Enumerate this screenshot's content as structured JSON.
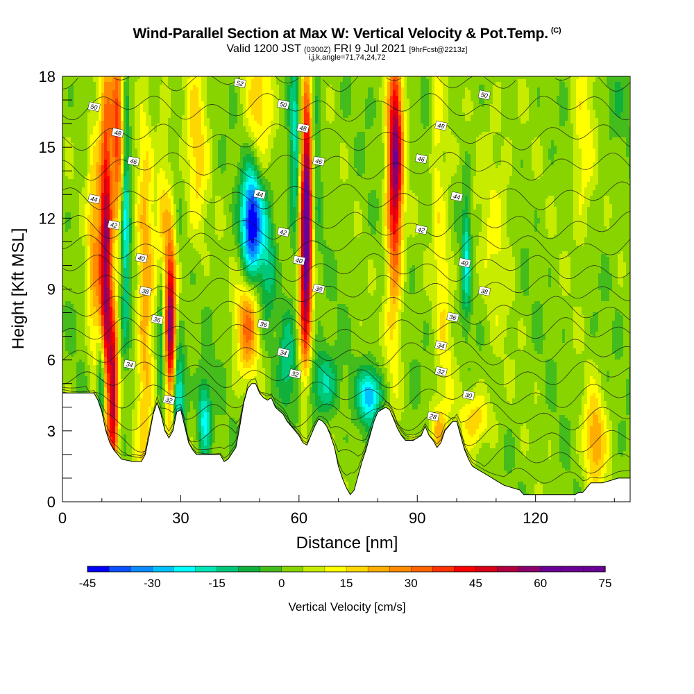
{
  "header": {
    "title": "Wind-Parallel Section at Max W: Vertical Velocity & Pot.Temp.",
    "copyright": "(C)",
    "valid_prefix": "Valid 1200 JST",
    "valid_z": "(0300Z)",
    "valid_date": "FRI 9 Jul 2021",
    "forecast": "[9hrFcst@2213z]",
    "indices": "i,j,k,angle=71,74,24,72"
  },
  "chart_data": {
    "type": "heatmap",
    "xlabel": "Distance [nm]",
    "ylabel": "Height [Kft MSL]",
    "xlim": [
      0,
      144
    ],
    "ylim": [
      0,
      18
    ],
    "x_ticks": [
      "0",
      "30",
      "60",
      "90",
      "120"
    ],
    "y_ticks": [
      "0",
      "3",
      "6",
      "9",
      "12",
      "15",
      "18"
    ],
    "colorbar": {
      "label": "Vertical Velocity [cm/s]",
      "range": [
        -45,
        75
      ],
      "step": 5,
      "tick_labels": [
        "-45",
        "-30",
        "-15",
        "0",
        "15",
        "30",
        "45",
        "60",
        "75"
      ],
      "colors": [
        "#0000ff",
        "#0a50ff",
        "#0a8aff",
        "#00c0ff",
        "#00ffff",
        "#00e6b4",
        "#00c878",
        "#10b03c",
        "#44bc1c",
        "#88d400",
        "#c8ec00",
        "#ffff00",
        "#ffd700",
        "#ffae00",
        "#ff8a00",
        "#ff6400",
        "#ff3200",
        "#ff0000",
        "#d80014",
        "#b00040",
        "#8c006e",
        "#6a0096"
      ]
    },
    "theta_contours": {
      "unit": "theta labels",
      "levels": [
        28,
        30,
        32,
        34,
        36,
        38,
        40,
        42,
        44,
        46,
        48,
        50,
        52
      ],
      "labels_shown": [
        "52",
        "50",
        "50",
        "50",
        "48",
        "48",
        "48",
        "46",
        "46",
        "46",
        "44",
        "44",
        "44",
        "42",
        "42",
        "42",
        "40",
        "40",
        "40",
        "38",
        "38",
        "38",
        "36",
        "36",
        "36",
        "34",
        "34",
        "34",
        "32",
        "32",
        "32",
        "30",
        "28"
      ]
    },
    "terrain_heights_kft": [
      [
        0,
        4.6
      ],
      [
        8,
        4.6
      ],
      [
        9,
        4.3
      ],
      [
        10,
        3.8
      ],
      [
        11,
        3.0
      ],
      [
        12,
        2.5
      ],
      [
        13,
        2.2
      ],
      [
        14,
        2.0
      ],
      [
        15,
        1.8
      ],
      [
        18,
        1.7
      ],
      [
        20,
        1.7
      ],
      [
        21,
        2.0
      ],
      [
        22,
        2.8
      ],
      [
        23,
        3.7
      ],
      [
        24,
        4.2
      ],
      [
        25,
        3.7
      ],
      [
        26,
        3.0
      ],
      [
        27,
        2.7
      ],
      [
        28,
        3.0
      ],
      [
        29,
        3.8
      ],
      [
        30,
        3.9
      ],
      [
        31,
        3.2
      ],
      [
        32,
        2.5
      ],
      [
        33,
        2.2
      ],
      [
        34,
        2.0
      ],
      [
        40,
        2.0
      ],
      [
        41,
        1.7
      ],
      [
        42,
        1.8
      ],
      [
        44,
        2.3
      ],
      [
        45,
        3.2
      ],
      [
        46,
        4.2
      ],
      [
        47,
        4.8
      ],
      [
        48,
        5.0
      ],
      [
        49,
        5.0
      ],
      [
        50,
        4.6
      ],
      [
        51,
        4.4
      ],
      [
        52,
        4.3
      ],
      [
        53,
        4.4
      ],
      [
        54,
        4.0
      ],
      [
        56,
        3.7
      ],
      [
        57,
        3.4
      ],
      [
        58,
        3.2
      ],
      [
        59,
        3.0
      ],
      [
        60,
        2.8
      ],
      [
        61,
        2.5
      ],
      [
        62,
        2.4
      ],
      [
        63,
        2.8
      ],
      [
        64,
        3.2
      ],
      [
        65,
        3.5
      ],
      [
        66,
        3.4
      ],
      [
        67,
        3.2
      ],
      [
        68,
        2.8
      ],
      [
        69,
        2.3
      ],
      [
        70,
        1.5
      ],
      [
        71,
        1.0
      ],
      [
        72,
        0.6
      ],
      [
        73,
        0.3
      ],
      [
        74,
        0.5
      ],
      [
        75,
        1.1
      ],
      [
        76,
        1.7
      ],
      [
        77,
        2.2
      ],
      [
        78,
        2.8
      ],
      [
        79,
        3.4
      ],
      [
        80,
        3.8
      ],
      [
        82,
        4.0
      ],
      [
        83,
        3.9
      ],
      [
        84,
        3.5
      ],
      [
        85,
        3.1
      ],
      [
        86,
        2.8
      ],
      [
        87,
        2.6
      ],
      [
        89,
        2.6
      ],
      [
        90,
        2.7
      ],
      [
        91,
        2.8
      ],
      [
        92,
        3.2
      ],
      [
        93,
        2.8
      ],
      [
        94,
        2.6
      ],
      [
        95,
        2.3
      ],
      [
        96,
        2.5
      ],
      [
        97,
        3.0
      ],
      [
        99,
        3.4
      ],
      [
        100,
        3.4
      ],
      [
        101,
        2.8
      ],
      [
        102,
        2.2
      ],
      [
        103,
        1.8
      ],
      [
        104,
        1.5
      ],
      [
        106,
        1.3
      ],
      [
        108,
        1.1
      ],
      [
        110,
        0.9
      ],
      [
        112,
        0.7
      ],
      [
        114,
        0.6
      ],
      [
        116,
        0.5
      ],
      [
        117,
        0.3
      ],
      [
        130,
        0.3
      ],
      [
        131,
        0.4
      ],
      [
        132,
        0.4
      ],
      [
        133,
        0.6
      ],
      [
        134,
        0.8
      ],
      [
        137,
        0.8
      ],
      [
        139,
        0.9
      ],
      [
        141,
        1.0
      ],
      [
        144,
        1.0
      ]
    ],
    "w_features": [
      {
        "x": 11,
        "y": 10,
        "sx": 1.1,
        "sy": 5.5,
        "w": 55
      },
      {
        "x": 13,
        "y": 4.5,
        "sx": 0.8,
        "sy": 2.5,
        "w": 45
      },
      {
        "x": 14,
        "y": 15.5,
        "sx": 1.2,
        "sy": 3.0,
        "w": 35
      },
      {
        "x": 8,
        "y": 11.0,
        "sx": 1.2,
        "sy": 4.0,
        "w": 20
      },
      {
        "x": 16,
        "y": 12.5,
        "sx": 0.8,
        "sy": 4.0,
        "w": -25
      },
      {
        "x": 10,
        "y": 5.0,
        "sx": 0.8,
        "sy": 1.5,
        "w": -35
      },
      {
        "x": 21,
        "y": 8.0,
        "sx": 1.5,
        "sy": 6.0,
        "w": 22
      },
      {
        "x": 27.5,
        "y": 7.0,
        "sx": 0.9,
        "sy": 3.0,
        "w": 55
      },
      {
        "x": 25,
        "y": 7.5,
        "sx": 0.7,
        "sy": 2.0,
        "w": -22
      },
      {
        "x": 25.5,
        "y": 11.0,
        "sx": 1.2,
        "sy": 4.0,
        "w": 15
      },
      {
        "x": 29,
        "y": 4.5,
        "sx": 1.5,
        "sy": 1.5,
        "w": -30
      },
      {
        "x": 36,
        "y": 3.5,
        "sx": 1.2,
        "sy": 1.2,
        "w": -25
      },
      {
        "x": 34,
        "y": 15.0,
        "sx": 2.0,
        "sy": 3.0,
        "w": 15
      },
      {
        "x": 48,
        "y": 11.8,
        "sx": 1.8,
        "sy": 1.6,
        "w": -48
      },
      {
        "x": 52,
        "y": 10.5,
        "sx": 1.5,
        "sy": 2.0,
        "w": -15
      },
      {
        "x": 47,
        "y": 7.5,
        "sx": 2.0,
        "sy": 1.5,
        "w": 28
      },
      {
        "x": 50,
        "y": 17.0,
        "sx": 2.5,
        "sy": 2.0,
        "w": 15
      },
      {
        "x": 62,
        "y": 13.0,
        "sx": 1.1,
        "sy": 3.5,
        "w": 58
      },
      {
        "x": 61.5,
        "y": 9.0,
        "sx": 1.0,
        "sy": 3.0,
        "w": 30
      },
      {
        "x": 59,
        "y": 15.0,
        "sx": 1.0,
        "sy": 3.0,
        "w": -18
      },
      {
        "x": 64,
        "y": 15.0,
        "sx": 1.0,
        "sy": 3.0,
        "w": -12
      },
      {
        "x": 57,
        "y": 6.0,
        "sx": 1.5,
        "sy": 1.5,
        "w": -15
      },
      {
        "x": 66,
        "y": 5.0,
        "sx": 2.5,
        "sy": 1.0,
        "w": -20
      },
      {
        "x": 78,
        "y": 4.5,
        "sx": 2.0,
        "sy": 0.8,
        "w": -32
      },
      {
        "x": 84.5,
        "y": 15.0,
        "sx": 1.3,
        "sy": 3.0,
        "w": 45
      },
      {
        "x": 84,
        "y": 11.0,
        "sx": 1.5,
        "sy": 4.0,
        "w": 20
      },
      {
        "x": 95,
        "y": 15.0,
        "sx": 1.0,
        "sy": 4.0,
        "w": 10
      },
      {
        "x": 102.5,
        "y": 10.5,
        "sx": 0.8,
        "sy": 2.0,
        "w": -20
      },
      {
        "x": 97,
        "y": 8.5,
        "sx": 1.5,
        "sy": 5.0,
        "w": 10
      },
      {
        "x": 95,
        "y": 3.0,
        "sx": 1.5,
        "sy": 0.8,
        "w": 18
      },
      {
        "x": 105,
        "y": 3.5,
        "sx": 3.0,
        "sy": 0.8,
        "w": 15
      },
      {
        "x": 135,
        "y": 2.5,
        "sx": 2.0,
        "sy": 1.5,
        "w": 22
      },
      {
        "x": 132,
        "y": 15.0,
        "sx": 2.0,
        "sy": 3.0,
        "w": 12
      },
      {
        "x": 140,
        "y": 17.0,
        "sx": 2.0,
        "sy": 1.5,
        "w": -5
      },
      {
        "x": 110,
        "y": 12.0,
        "sx": 3.0,
        "sy": 4.0,
        "w": 8
      }
    ]
  }
}
